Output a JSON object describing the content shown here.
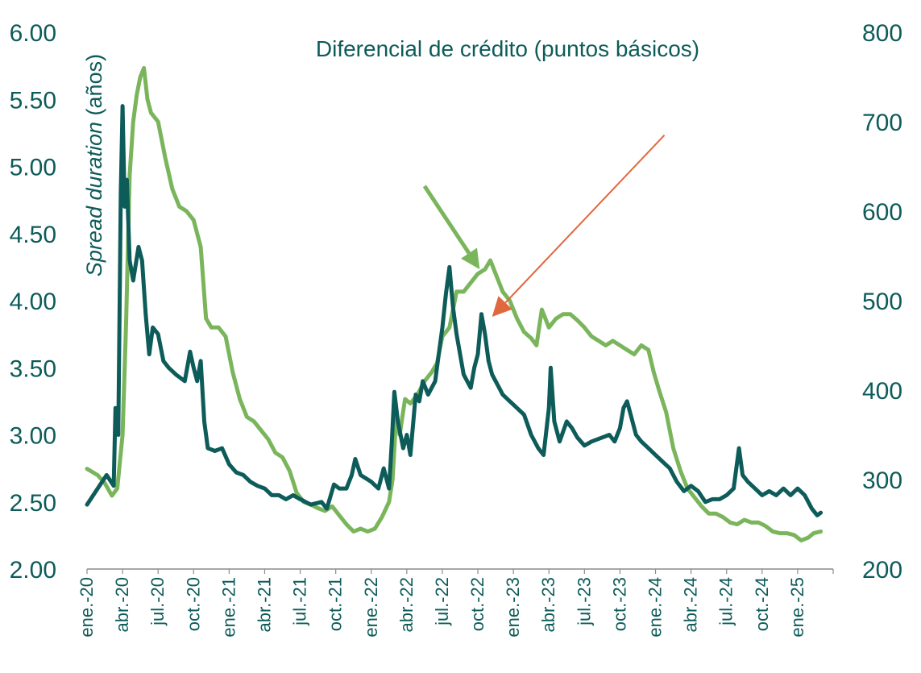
{
  "chart_data": {
    "type": "line",
    "title": "Diferencial de crédito (puntos básicos)",
    "ylabel_left": {
      "italic": "Spread duration",
      "rest": " (años)"
    },
    "ylim_left": [
      2.0,
      6.0
    ],
    "yticks_left": [
      "2.00",
      "2.50",
      "3.00",
      "3.50",
      "4.00",
      "4.50",
      "5.00",
      "5.50",
      "6.00"
    ],
    "ylim_right": [
      200,
      800
    ],
    "yticks_right": [
      "200",
      "300",
      "400",
      "500",
      "600",
      "700",
      "800"
    ],
    "x_categories": [
      "ene.-20",
      "abr.-20",
      "jul.-20",
      "oct.-20",
      "ene.-21",
      "abr.-21",
      "jul.-21",
      "oct.-21",
      "ene.-22",
      "abr.-22",
      "jul.-22",
      "oct.-22",
      "ene.-23",
      "abr.-23",
      "jul.-23",
      "oct.-23",
      "ene.-24",
      "abr.-24",
      "jul.-24",
      "oct.-24",
      "ene.-25"
    ],
    "grid": false,
    "legend": "none",
    "series": [
      {
        "axis": "left",
        "color": "#0d5c5a",
        "points": [
          [
            0.0,
            2.48
          ],
          [
            0.3,
            2.6
          ],
          [
            0.55,
            2.7
          ],
          [
            0.75,
            2.62
          ],
          [
            0.8,
            3.2
          ],
          [
            0.88,
            3.0
          ],
          [
            0.95,
            4.8
          ],
          [
            1.0,
            5.45
          ],
          [
            1.06,
            4.7
          ],
          [
            1.12,
            4.9
          ],
          [
            1.2,
            4.3
          ],
          [
            1.3,
            4.15
          ],
          [
            1.45,
            4.4
          ],
          [
            1.55,
            4.3
          ],
          [
            1.65,
            3.9
          ],
          [
            1.75,
            3.6
          ],
          [
            1.85,
            3.8
          ],
          [
            2.0,
            3.75
          ],
          [
            2.15,
            3.55
          ],
          [
            2.3,
            3.5
          ],
          [
            2.5,
            3.45
          ],
          [
            2.75,
            3.4
          ],
          [
            2.9,
            3.62
          ],
          [
            3.0,
            3.5
          ],
          [
            3.1,
            3.4
          ],
          [
            3.2,
            3.55
          ],
          [
            3.3,
            3.1
          ],
          [
            3.4,
            2.9
          ],
          [
            3.6,
            2.88
          ],
          [
            3.8,
            2.9
          ],
          [
            4.0,
            2.78
          ],
          [
            4.2,
            2.72
          ],
          [
            4.4,
            2.7
          ],
          [
            4.6,
            2.65
          ],
          [
            4.8,
            2.62
          ],
          [
            5.0,
            2.6
          ],
          [
            5.2,
            2.55
          ],
          [
            5.4,
            2.55
          ],
          [
            5.6,
            2.52
          ],
          [
            5.8,
            2.55
          ],
          [
            6.0,
            2.52
          ],
          [
            6.3,
            2.48
          ],
          [
            6.6,
            2.5
          ],
          [
            6.75,
            2.45
          ],
          [
            6.95,
            2.63
          ],
          [
            7.1,
            2.6
          ],
          [
            7.3,
            2.6
          ],
          [
            7.45,
            2.7
          ],
          [
            7.55,
            2.82
          ],
          [
            7.7,
            2.7
          ],
          [
            8.0,
            2.65
          ],
          [
            8.2,
            2.6
          ],
          [
            8.35,
            2.75
          ],
          [
            8.5,
            2.6
          ],
          [
            8.58,
            2.95
          ],
          [
            8.65,
            3.32
          ],
          [
            8.75,
            3.1
          ],
          [
            8.9,
            2.9
          ],
          [
            9.0,
            3.0
          ],
          [
            9.1,
            2.85
          ],
          [
            9.25,
            3.3
          ],
          [
            9.35,
            3.25
          ],
          [
            9.45,
            3.4
          ],
          [
            9.6,
            3.3
          ],
          [
            9.8,
            3.4
          ],
          [
            9.9,
            3.6
          ],
          [
            10.0,
            3.8
          ],
          [
            10.1,
            4.05
          ],
          [
            10.2,
            4.25
          ],
          [
            10.3,
            3.95
          ],
          [
            10.4,
            3.75
          ],
          [
            10.5,
            3.6
          ],
          [
            10.6,
            3.45
          ],
          [
            10.7,
            3.4
          ],
          [
            10.8,
            3.35
          ],
          [
            10.9,
            3.5
          ],
          [
            11.0,
            3.6
          ],
          [
            11.1,
            3.9
          ],
          [
            11.2,
            3.75
          ],
          [
            11.3,
            3.55
          ],
          [
            11.4,
            3.45
          ],
          [
            11.5,
            3.4
          ],
          [
            11.6,
            3.35
          ],
          [
            11.7,
            3.3
          ],
          [
            11.9,
            3.25
          ],
          [
            12.1,
            3.2
          ],
          [
            12.3,
            3.15
          ],
          [
            12.5,
            3.0
          ],
          [
            12.7,
            2.9
          ],
          [
            12.85,
            2.85
          ],
          [
            13.0,
            3.2
          ],
          [
            13.05,
            3.5
          ],
          [
            13.15,
            3.1
          ],
          [
            13.3,
            2.95
          ],
          [
            13.5,
            3.1
          ],
          [
            13.65,
            3.05
          ],
          [
            13.8,
            2.98
          ],
          [
            14.0,
            2.92
          ],
          [
            14.2,
            2.95
          ],
          [
            14.5,
            2.98
          ],
          [
            14.7,
            3.0
          ],
          [
            14.85,
            2.95
          ],
          [
            15.0,
            3.05
          ],
          [
            15.1,
            3.2
          ],
          [
            15.2,
            3.25
          ],
          [
            15.3,
            3.15
          ],
          [
            15.45,
            3.0
          ],
          [
            15.6,
            2.95
          ],
          [
            15.8,
            2.9
          ],
          [
            16.0,
            2.85
          ],
          [
            16.2,
            2.8
          ],
          [
            16.4,
            2.75
          ],
          [
            16.6,
            2.65
          ],
          [
            16.8,
            2.58
          ],
          [
            17.0,
            2.62
          ],
          [
            17.2,
            2.58
          ],
          [
            17.4,
            2.5
          ],
          [
            17.6,
            2.52
          ],
          [
            17.8,
            2.52
          ],
          [
            18.0,
            2.55
          ],
          [
            18.2,
            2.6
          ],
          [
            18.35,
            2.9
          ],
          [
            18.45,
            2.7
          ],
          [
            18.6,
            2.65
          ],
          [
            18.8,
            2.6
          ],
          [
            19.0,
            2.55
          ],
          [
            19.2,
            2.58
          ],
          [
            19.4,
            2.55
          ],
          [
            19.6,
            2.6
          ],
          [
            19.8,
            2.55
          ],
          [
            20.0,
            2.6
          ],
          [
            20.2,
            2.55
          ],
          [
            20.4,
            2.45
          ],
          [
            20.55,
            2.4
          ],
          [
            20.65,
            2.42
          ]
        ]
      },
      {
        "axis": "right",
        "color": "#7ab55c",
        "points": [
          [
            0.0,
            312
          ],
          [
            0.3,
            305
          ],
          [
            0.5,
            296
          ],
          [
            0.7,
            282
          ],
          [
            0.85,
            290
          ],
          [
            1.0,
            350
          ],
          [
            1.1,
            475
          ],
          [
            1.2,
            640
          ],
          [
            1.3,
            700
          ],
          [
            1.4,
            730
          ],
          [
            1.5,
            750
          ],
          [
            1.6,
            760
          ],
          [
            1.7,
            725
          ],
          [
            1.8,
            710
          ],
          [
            2.0,
            700
          ],
          [
            2.2,
            660
          ],
          [
            2.4,
            625
          ],
          [
            2.6,
            605
          ],
          [
            2.8,
            600
          ],
          [
            3.0,
            590
          ],
          [
            3.2,
            560
          ],
          [
            3.35,
            480
          ],
          [
            3.5,
            470
          ],
          [
            3.7,
            470
          ],
          [
            3.9,
            460
          ],
          [
            4.1,
            420
          ],
          [
            4.3,
            390
          ],
          [
            4.5,
            370
          ],
          [
            4.7,
            365
          ],
          [
            4.9,
            355
          ],
          [
            5.1,
            345
          ],
          [
            5.3,
            330
          ],
          [
            5.5,
            325
          ],
          [
            5.7,
            310
          ],
          [
            5.9,
            285
          ],
          [
            6.1,
            275
          ],
          [
            6.3,
            272
          ],
          [
            6.5,
            268
          ],
          [
            6.7,
            265
          ],
          [
            6.9,
            270
          ],
          [
            7.1,
            260
          ],
          [
            7.3,
            250
          ],
          [
            7.5,
            242
          ],
          [
            7.7,
            245
          ],
          [
            7.9,
            242
          ],
          [
            8.1,
            245
          ],
          [
            8.3,
            258
          ],
          [
            8.5,
            275
          ],
          [
            8.6,
            300
          ],
          [
            8.7,
            370
          ],
          [
            8.8,
            350
          ],
          [
            8.95,
            390
          ],
          [
            9.1,
            385
          ],
          [
            9.3,
            395
          ],
          [
            9.5,
            410
          ],
          [
            9.7,
            420
          ],
          [
            9.85,
            430
          ],
          [
            10.0,
            460
          ],
          [
            10.2,
            470
          ],
          [
            10.4,
            510
          ],
          [
            10.6,
            510
          ],
          [
            10.8,
            520
          ],
          [
            11.0,
            530
          ],
          [
            11.2,
            535
          ],
          [
            11.35,
            545
          ],
          [
            11.5,
            530
          ],
          [
            11.7,
            510
          ],
          [
            11.9,
            500
          ],
          [
            12.1,
            480
          ],
          [
            12.3,
            465
          ],
          [
            12.5,
            458
          ],
          [
            12.65,
            450
          ],
          [
            12.8,
            490
          ],
          [
            12.9,
            480
          ],
          [
            13.0,
            470
          ],
          [
            13.2,
            480
          ],
          [
            13.4,
            485
          ],
          [
            13.6,
            485
          ],
          [
            13.8,
            478
          ],
          [
            14.0,
            470
          ],
          [
            14.2,
            460
          ],
          [
            14.4,
            455
          ],
          [
            14.6,
            450
          ],
          [
            14.8,
            455
          ],
          [
            15.0,
            450
          ],
          [
            15.2,
            445
          ],
          [
            15.4,
            440
          ],
          [
            15.6,
            450
          ],
          [
            15.8,
            445
          ],
          [
            15.95,
            420
          ],
          [
            16.1,
            400
          ],
          [
            16.3,
            375
          ],
          [
            16.5,
            335
          ],
          [
            16.7,
            310
          ],
          [
            16.9,
            290
          ],
          [
            17.1,
            280
          ],
          [
            17.3,
            270
          ],
          [
            17.5,
            262
          ],
          [
            17.7,
            262
          ],
          [
            17.9,
            258
          ],
          [
            18.1,
            252
          ],
          [
            18.3,
            250
          ],
          [
            18.5,
            255
          ],
          [
            18.7,
            252
          ],
          [
            18.9,
            252
          ],
          [
            19.1,
            248
          ],
          [
            19.3,
            242
          ],
          [
            19.5,
            240
          ],
          [
            19.7,
            240
          ],
          [
            19.9,
            238
          ],
          [
            20.1,
            232
          ],
          [
            20.3,
            235
          ],
          [
            20.45,
            240
          ],
          [
            20.65,
            242
          ]
        ]
      }
    ],
    "annotations": [
      {
        "type": "arrow",
        "color": "#7ab55c",
        "from": [
          9.5,
          628
        ],
        "to": [
          11.05,
          535
        ]
      },
      {
        "type": "arrow",
        "color": "#e0683f",
        "from": [
          16.25,
          685
        ],
        "to": [
          11.4,
          482
        ]
      }
    ]
  }
}
